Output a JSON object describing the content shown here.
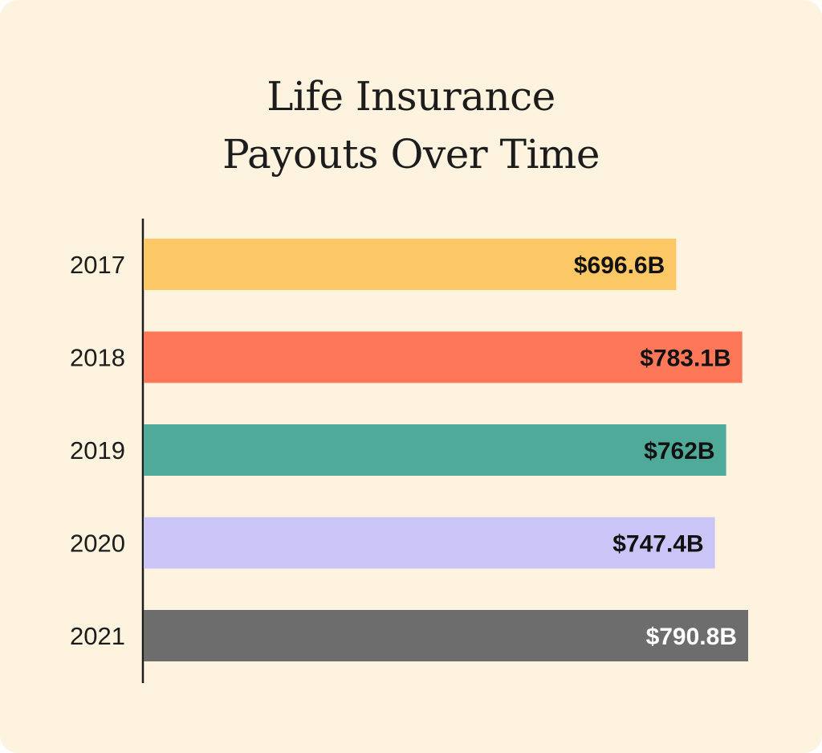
{
  "chart_data": {
    "type": "bar",
    "orientation": "horizontal",
    "title_lines": [
      "Life Insurance",
      "Payouts Over Time"
    ],
    "categories": [
      "2017",
      "2018",
      "2019",
      "2020",
      "2021"
    ],
    "values": [
      696.6,
      783.1,
      762,
      747.4,
      790.8
    ],
    "value_labels": [
      "$696.6B",
      "$783.1B",
      "$762B",
      "$747.4B",
      "$790.8B"
    ],
    "colors": [
      "#fcc865",
      "#ff7759",
      "#4faa9a",
      "#cbc4f6",
      "#6d6d6d"
    ],
    "label_colors": [
      "#111111",
      "#111111",
      "#111111",
      "#111111",
      "#ffffff"
    ],
    "xlim": [
      0,
      790.8
    ],
    "grid": false,
    "legend": "none"
  }
}
